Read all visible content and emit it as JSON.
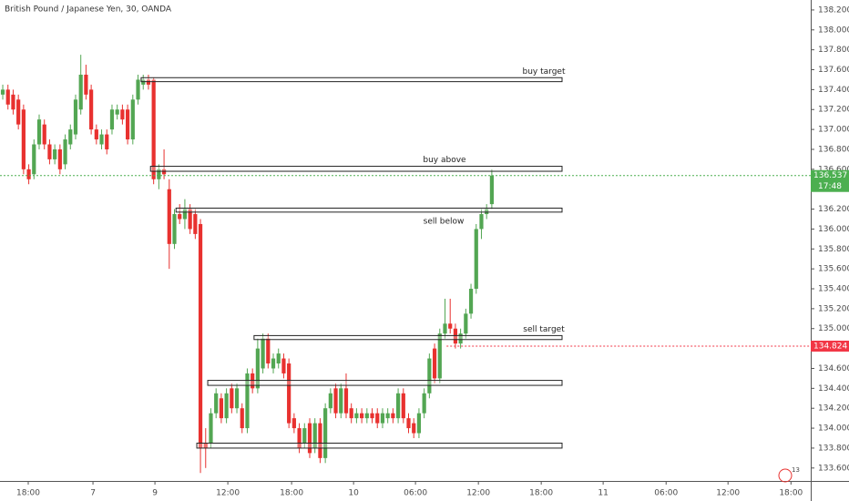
{
  "chart_data": {
    "type": "candlestick",
    "title": "British Pound / Japanese Yen, 30, OANDA",
    "badge": "13",
    "up_color": "#53a653",
    "down_color": "#e8312f",
    "xlim": [
      -0.53,
      155.3
    ],
    "ylim": [
      133.47,
      138.3
    ],
    "xticks": [
      {
        "value": 4.9,
        "label": "18:00"
      },
      {
        "value": 17.34,
        "label": "7"
      },
      {
        "value": 29.25,
        "label": "9"
      },
      {
        "value": 43.26,
        "label": "12:00"
      },
      {
        "value": 55.52,
        "label": "18:00"
      },
      {
        "value": 67.43,
        "label": "10"
      },
      {
        "value": 79.33,
        "label": "06:00"
      },
      {
        "value": 91.42,
        "label": "12:00"
      },
      {
        "value": 103.5,
        "label": "18:00"
      },
      {
        "value": 115.4,
        "label": "11"
      },
      {
        "value": 127.5,
        "label": "06:00"
      },
      {
        "value": 139.4,
        "label": "12:00"
      },
      {
        "value": 151.5,
        "label": "18:00"
      }
    ],
    "yticks": [
      {
        "value": 133.6,
        "label": "133.600"
      },
      {
        "value": 133.8,
        "label": "133.800"
      },
      {
        "value": 134.0,
        "label": "134.000"
      },
      {
        "value": 134.2,
        "label": "134.200"
      },
      {
        "value": 134.4,
        "label": "134.400"
      },
      {
        "value": 134.6,
        "label": "134.600"
      },
      {
        "value": 134.8,
        "label": "134.800"
      },
      {
        "value": 135.0,
        "label": "135.000"
      },
      {
        "value": 135.2,
        "label": "135.200"
      },
      {
        "value": 135.4,
        "label": "135.400"
      },
      {
        "value": 135.6,
        "label": "135.600"
      },
      {
        "value": 135.8,
        "label": "135.800"
      },
      {
        "value": 136.0,
        "label": "136.000"
      },
      {
        "value": 136.2,
        "label": "136.200"
      },
      {
        "value": 136.4,
        "label": "136.400"
      },
      {
        "value": 136.6,
        "label": "136.600"
      },
      {
        "value": 136.8,
        "label": "136.800"
      },
      {
        "value": 137.0,
        "label": "137.000"
      },
      {
        "value": 137.2,
        "label": "137.200"
      },
      {
        "value": 137.4,
        "label": "137.400"
      },
      {
        "value": 137.6,
        "label": "137.600"
      },
      {
        "value": 137.8,
        "label": "137.800"
      },
      {
        "value": 138.0,
        "label": "138.000"
      },
      {
        "value": 138.2,
        "label": "138.200"
      }
    ],
    "ohlc": [
      [
        137.35,
        137.45,
        137.3,
        137.4
      ],
      [
        137.4,
        137.45,
        137.2,
        137.25
      ],
      [
        137.35,
        137.4,
        137.15,
        137.2
      ],
      [
        137.3,
        137.35,
        137.0,
        137.05
      ],
      [
        137.2,
        137.25,
        136.55,
        136.6
      ],
      [
        136.6,
        136.65,
        136.45,
        136.5
      ],
      [
        136.55,
        136.9,
        136.5,
        136.85
      ],
      [
        136.85,
        137.15,
        136.8,
        137.1
      ],
      [
        137.05,
        137.1,
        136.8,
        136.85
      ],
      [
        136.85,
        136.9,
        136.65,
        136.7
      ],
      [
        136.7,
        136.85,
        136.65,
        136.8
      ],
      [
        136.8,
        136.85,
        136.55,
        136.6
      ],
      [
        136.65,
        136.95,
        136.6,
        136.9
      ],
      [
        136.85,
        137.05,
        136.8,
        137.0
      ],
      [
        136.95,
        137.35,
        136.9,
        137.3
      ],
      [
        137.2,
        137.75,
        137.15,
        137.55
      ],
      [
        137.55,
        137.65,
        137.3,
        137.35
      ],
      [
        137.4,
        137.45,
        136.95,
        137.0
      ],
      [
        137.0,
        137.05,
        136.85,
        136.9
      ],
      [
        136.85,
        137.0,
        136.8,
        136.95
      ],
      [
        136.95,
        137.0,
        136.75,
        136.8
      ],
      [
        137.0,
        137.25,
        136.95,
        137.2
      ],
      [
        137.15,
        137.25,
        137.1,
        137.2
      ],
      [
        137.2,
        137.25,
        137.05,
        137.1
      ],
      [
        137.2,
        137.25,
        136.85,
        136.9
      ],
      [
        136.9,
        137.35,
        136.85,
        137.3
      ],
      [
        137.3,
        137.55,
        137.25,
        137.5
      ],
      [
        137.45,
        137.55,
        137.4,
        137.5
      ],
      [
        137.5,
        137.55,
        137.4,
        137.45
      ],
      [
        137.5,
        137.52,
        136.45,
        136.5
      ],
      [
        136.5,
        136.65,
        136.4,
        136.6
      ],
      [
        136.6,
        136.8,
        136.5,
        136.55
      ],
      [
        136.4,
        136.5,
        135.6,
        135.85
      ],
      [
        135.85,
        136.2,
        135.8,
        136.15
      ],
      [
        136.15,
        136.25,
        136.05,
        136.1
      ],
      [
        136.1,
        136.3,
        136.0,
        136.2
      ],
      [
        136.2,
        136.25,
        135.95,
        136.0
      ],
      [
        136.15,
        136.2,
        135.9,
        135.95
      ],
      [
        136.05,
        136.1,
        133.55,
        133.8
      ],
      [
        133.85,
        134.0,
        133.6,
        133.8
      ],
      [
        133.85,
        134.2,
        133.8,
        134.15
      ],
      [
        134.15,
        134.4,
        134.1,
        134.35
      ],
      [
        134.3,
        134.35,
        134.05,
        134.1
      ],
      [
        134.1,
        134.4,
        134.05,
        134.35
      ],
      [
        134.4,
        134.45,
        134.15,
        134.2
      ],
      [
        134.2,
        134.45,
        134.15,
        134.4
      ],
      [
        134.2,
        134.25,
        133.95,
        134.0
      ],
      [
        134.0,
        134.6,
        133.95,
        134.55
      ],
      [
        134.55,
        134.6,
        134.35,
        134.4
      ],
      [
        134.4,
        134.9,
        134.35,
        134.8
      ],
      [
        134.6,
        134.95,
        134.55,
        134.9
      ],
      [
        134.9,
        134.95,
        134.6,
        134.65
      ],
      [
        134.6,
        134.75,
        134.55,
        134.7
      ],
      [
        134.65,
        134.8,
        134.6,
        134.75
      ],
      [
        134.7,
        134.75,
        134.5,
        134.55
      ],
      [
        134.65,
        134.7,
        134.0,
        134.05
      ],
      [
        134.1,
        134.15,
        133.95,
        134.0
      ],
      [
        134.0,
        134.05,
        133.75,
        133.8
      ],
      [
        133.85,
        134.05,
        133.8,
        134.0
      ],
      [
        134.05,
        134.1,
        133.7,
        133.75
      ],
      [
        133.8,
        134.1,
        133.75,
        134.05
      ],
      [
        134.05,
        134.1,
        133.65,
        133.7
      ],
      [
        133.7,
        134.25,
        133.65,
        134.2
      ],
      [
        134.2,
        134.4,
        134.15,
        134.35
      ],
      [
        134.4,
        134.45,
        134.1,
        134.15
      ],
      [
        134.15,
        134.45,
        134.1,
        134.4
      ],
      [
        134.4,
        134.55,
        134.1,
        134.15
      ],
      [
        134.2,
        134.25,
        134.05,
        134.1
      ],
      [
        134.1,
        134.2,
        134.05,
        134.15
      ],
      [
        134.15,
        134.2,
        134.05,
        134.1
      ],
      [
        134.1,
        134.2,
        134.05,
        134.15
      ],
      [
        134.15,
        134.2,
        134.05,
        134.1
      ],
      [
        134.15,
        134.2,
        134.0,
        134.05
      ],
      [
        134.05,
        134.2,
        134.0,
        134.15
      ],
      [
        134.1,
        134.2,
        134.05,
        134.15
      ],
      [
        134.15,
        134.2,
        134.05,
        134.1
      ],
      [
        134.1,
        134.4,
        134.05,
        134.35
      ],
      [
        134.35,
        134.4,
        134.05,
        134.1
      ],
      [
        134.1,
        134.15,
        133.95,
        134.0
      ],
      [
        134.05,
        134.1,
        133.9,
        133.95
      ],
      [
        133.95,
        134.2,
        133.9,
        134.15
      ],
      [
        134.15,
        134.4,
        134.1,
        134.35
      ],
      [
        134.35,
        134.75,
        134.3,
        134.7
      ],
      [
        134.8,
        134.85,
        134.45,
        134.5
      ],
      [
        134.5,
        135.0,
        134.45,
        134.95
      ],
      [
        134.95,
        135.3,
        134.9,
        135.05
      ],
      [
        135.05,
        135.3,
        134.95,
        135.0
      ],
      [
        135.0,
        135.05,
        134.8,
        134.85
      ],
      [
        134.85,
        135.0,
        134.8,
        134.95
      ],
      [
        134.95,
        135.2,
        134.9,
        135.15
      ],
      [
        135.15,
        135.45,
        135.1,
        135.4
      ],
      [
        135.4,
        136.05,
        135.35,
        136.0
      ],
      [
        136.0,
        136.2,
        135.9,
        136.15
      ],
      [
        136.15,
        136.25,
        136.1,
        136.2
      ],
      [
        136.25,
        136.6,
        136.2,
        136.537
      ]
    ],
    "levels": [
      {
        "label": "buy target",
        "top": 137.52,
        "bottom": 137.48,
        "start": 26.6,
        "end": 107.5
      },
      {
        "label": "buy above",
        "top": 136.63,
        "bottom": 136.58,
        "start": 28.4,
        "end": 107.5
      },
      {
        "label": "sell below",
        "top": 136.21,
        "bottom": 136.17,
        "start": 33.3,
        "end": 107.5
      },
      {
        "label": "sell target",
        "top": 134.93,
        "bottom": 134.89,
        "start": 48.3,
        "end": 107.5
      },
      {
        "top": 134.48,
        "bottom": 134.43,
        "start": 39.4,
        "end": 107.5
      },
      {
        "top": 133.85,
        "bottom": 133.8,
        "start": 37.3,
        "end": 107.5
      }
    ],
    "price_lines": [
      {
        "value": 136.537,
        "color": "#4caf50",
        "timer": "17:48",
        "start": -0.53
      },
      {
        "value": 134.824,
        "color": "#f23645",
        "start": 85.3
      }
    ]
  }
}
